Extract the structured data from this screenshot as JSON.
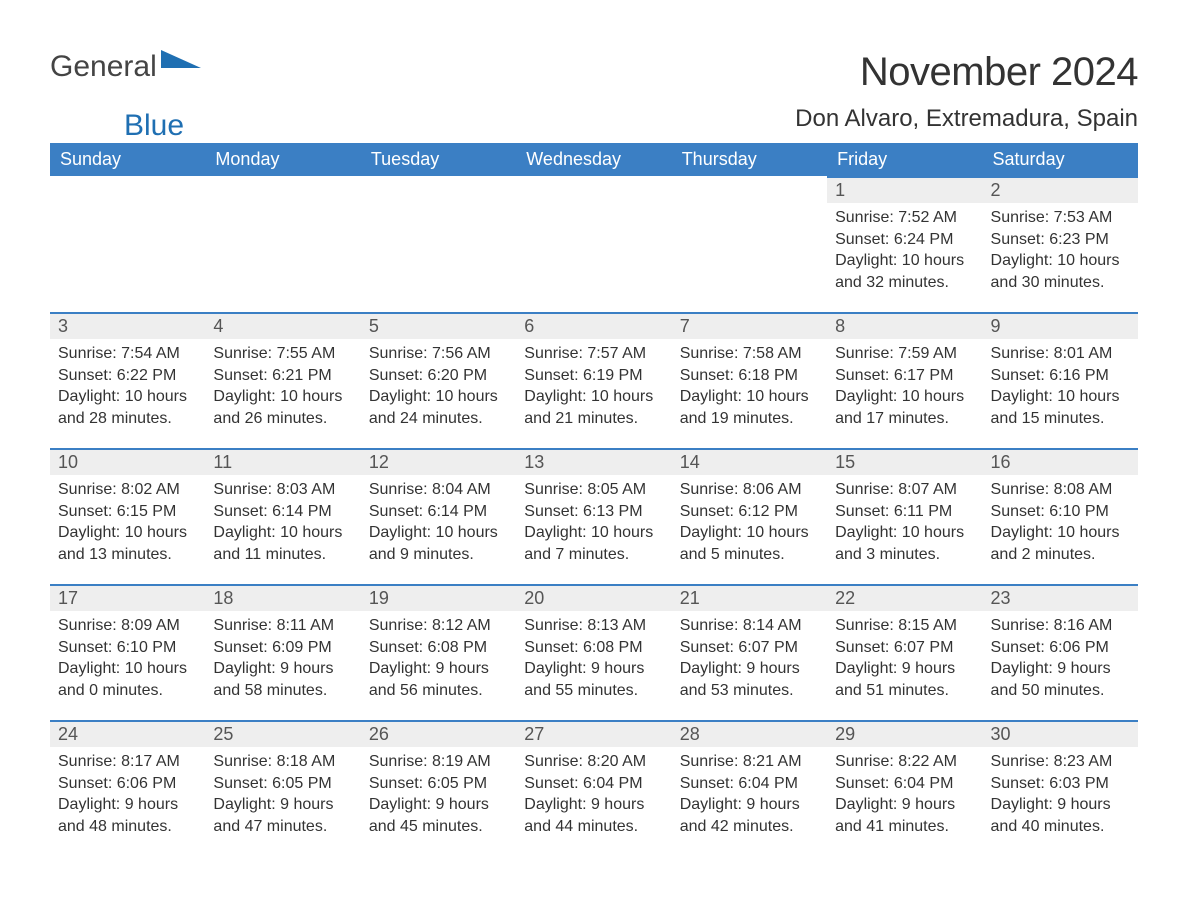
{
  "logo": {
    "word1": "General",
    "word2": "Blue"
  },
  "title": "November 2024",
  "location": "Don Alvaro, Extremadura, Spain",
  "colors": {
    "header_bg": "#3b7fc4",
    "header_text": "#ffffff",
    "daynum_bg": "#eeeeee",
    "daynum_border": "#3b7fc4",
    "body_bg": "#ffffff",
    "text": "#333333",
    "logo_blue": "#1f6fb2",
    "logo_gray": "#444444"
  },
  "headers": [
    "Sunday",
    "Monday",
    "Tuesday",
    "Wednesday",
    "Thursday",
    "Friday",
    "Saturday"
  ],
  "weeks": [
    [
      null,
      null,
      null,
      null,
      null,
      {
        "d": "1",
        "sr": "Sunrise: 7:52 AM",
        "ss": "Sunset: 6:24 PM",
        "dl1": "Daylight: 10 hours",
        "dl2": "and 32 minutes."
      },
      {
        "d": "2",
        "sr": "Sunrise: 7:53 AM",
        "ss": "Sunset: 6:23 PM",
        "dl1": "Daylight: 10 hours",
        "dl2": "and 30 minutes."
      }
    ],
    [
      {
        "d": "3",
        "sr": "Sunrise: 7:54 AM",
        "ss": "Sunset: 6:22 PM",
        "dl1": "Daylight: 10 hours",
        "dl2": "and 28 minutes."
      },
      {
        "d": "4",
        "sr": "Sunrise: 7:55 AM",
        "ss": "Sunset: 6:21 PM",
        "dl1": "Daylight: 10 hours",
        "dl2": "and 26 minutes."
      },
      {
        "d": "5",
        "sr": "Sunrise: 7:56 AM",
        "ss": "Sunset: 6:20 PM",
        "dl1": "Daylight: 10 hours",
        "dl2": "and 24 minutes."
      },
      {
        "d": "6",
        "sr": "Sunrise: 7:57 AM",
        "ss": "Sunset: 6:19 PM",
        "dl1": "Daylight: 10 hours",
        "dl2": "and 21 minutes."
      },
      {
        "d": "7",
        "sr": "Sunrise: 7:58 AM",
        "ss": "Sunset: 6:18 PM",
        "dl1": "Daylight: 10 hours",
        "dl2": "and 19 minutes."
      },
      {
        "d": "8",
        "sr": "Sunrise: 7:59 AM",
        "ss": "Sunset: 6:17 PM",
        "dl1": "Daylight: 10 hours",
        "dl2": "and 17 minutes."
      },
      {
        "d": "9",
        "sr": "Sunrise: 8:01 AM",
        "ss": "Sunset: 6:16 PM",
        "dl1": "Daylight: 10 hours",
        "dl2": "and 15 minutes."
      }
    ],
    [
      {
        "d": "10",
        "sr": "Sunrise: 8:02 AM",
        "ss": "Sunset: 6:15 PM",
        "dl1": "Daylight: 10 hours",
        "dl2": "and 13 minutes."
      },
      {
        "d": "11",
        "sr": "Sunrise: 8:03 AM",
        "ss": "Sunset: 6:14 PM",
        "dl1": "Daylight: 10 hours",
        "dl2": "and 11 minutes."
      },
      {
        "d": "12",
        "sr": "Sunrise: 8:04 AM",
        "ss": "Sunset: 6:14 PM",
        "dl1": "Daylight: 10 hours",
        "dl2": "and 9 minutes."
      },
      {
        "d": "13",
        "sr": "Sunrise: 8:05 AM",
        "ss": "Sunset: 6:13 PM",
        "dl1": "Daylight: 10 hours",
        "dl2": "and 7 minutes."
      },
      {
        "d": "14",
        "sr": "Sunrise: 8:06 AM",
        "ss": "Sunset: 6:12 PM",
        "dl1": "Daylight: 10 hours",
        "dl2": "and 5 minutes."
      },
      {
        "d": "15",
        "sr": "Sunrise: 8:07 AM",
        "ss": "Sunset: 6:11 PM",
        "dl1": "Daylight: 10 hours",
        "dl2": "and 3 minutes."
      },
      {
        "d": "16",
        "sr": "Sunrise: 8:08 AM",
        "ss": "Sunset: 6:10 PM",
        "dl1": "Daylight: 10 hours",
        "dl2": "and 2 minutes."
      }
    ],
    [
      {
        "d": "17",
        "sr": "Sunrise: 8:09 AM",
        "ss": "Sunset: 6:10 PM",
        "dl1": "Daylight: 10 hours",
        "dl2": "and 0 minutes."
      },
      {
        "d": "18",
        "sr": "Sunrise: 8:11 AM",
        "ss": "Sunset: 6:09 PM",
        "dl1": "Daylight: 9 hours",
        "dl2": "and 58 minutes."
      },
      {
        "d": "19",
        "sr": "Sunrise: 8:12 AM",
        "ss": "Sunset: 6:08 PM",
        "dl1": "Daylight: 9 hours",
        "dl2": "and 56 minutes."
      },
      {
        "d": "20",
        "sr": "Sunrise: 8:13 AM",
        "ss": "Sunset: 6:08 PM",
        "dl1": "Daylight: 9 hours",
        "dl2": "and 55 minutes."
      },
      {
        "d": "21",
        "sr": "Sunrise: 8:14 AM",
        "ss": "Sunset: 6:07 PM",
        "dl1": "Daylight: 9 hours",
        "dl2": "and 53 minutes."
      },
      {
        "d": "22",
        "sr": "Sunrise: 8:15 AM",
        "ss": "Sunset: 6:07 PM",
        "dl1": "Daylight: 9 hours",
        "dl2": "and 51 minutes."
      },
      {
        "d": "23",
        "sr": "Sunrise: 8:16 AM",
        "ss": "Sunset: 6:06 PM",
        "dl1": "Daylight: 9 hours",
        "dl2": "and 50 minutes."
      }
    ],
    [
      {
        "d": "24",
        "sr": "Sunrise: 8:17 AM",
        "ss": "Sunset: 6:06 PM",
        "dl1": "Daylight: 9 hours",
        "dl2": "and 48 minutes."
      },
      {
        "d": "25",
        "sr": "Sunrise: 8:18 AM",
        "ss": "Sunset: 6:05 PM",
        "dl1": "Daylight: 9 hours",
        "dl2": "and 47 minutes."
      },
      {
        "d": "26",
        "sr": "Sunrise: 8:19 AM",
        "ss": "Sunset: 6:05 PM",
        "dl1": "Daylight: 9 hours",
        "dl2": "and 45 minutes."
      },
      {
        "d": "27",
        "sr": "Sunrise: 8:20 AM",
        "ss": "Sunset: 6:04 PM",
        "dl1": "Daylight: 9 hours",
        "dl2": "and 44 minutes."
      },
      {
        "d": "28",
        "sr": "Sunrise: 8:21 AM",
        "ss": "Sunset: 6:04 PM",
        "dl1": "Daylight: 9 hours",
        "dl2": "and 42 minutes."
      },
      {
        "d": "29",
        "sr": "Sunrise: 8:22 AM",
        "ss": "Sunset: 6:04 PM",
        "dl1": "Daylight: 9 hours",
        "dl2": "and 41 minutes."
      },
      {
        "d": "30",
        "sr": "Sunrise: 8:23 AM",
        "ss": "Sunset: 6:03 PM",
        "dl1": "Daylight: 9 hours",
        "dl2": "and 40 minutes."
      }
    ]
  ]
}
